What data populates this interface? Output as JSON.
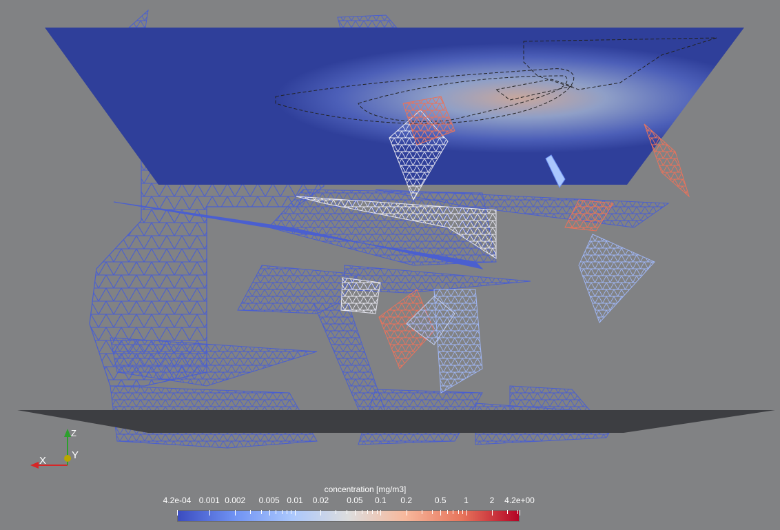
{
  "colorbar": {
    "title": "concentration [mg/m3]",
    "ticks": [
      "4.2e-04",
      "0.001",
      "0.002",
      "0.005",
      "0.01",
      "0.02",
      "0.05",
      "0.1",
      "0.2",
      "0.5",
      "1",
      "2",
      "4.2e+00"
    ],
    "tick_values": [
      0.00042,
      0.001,
      0.002,
      0.005,
      0.01,
      0.02,
      0.05,
      0.1,
      0.2,
      0.5,
      1,
      2,
      4.2
    ],
    "minor_values": [
      0.003,
      0.004,
      0.006,
      0.007,
      0.008,
      0.009,
      0.03,
      0.04,
      0.06,
      0.07,
      0.08,
      0.09,
      0.3,
      0.4,
      0.6,
      0.7,
      0.8,
      0.9,
      3,
      4
    ],
    "range": [
      0.00042,
      4.2
    ],
    "scale": "log",
    "colormap": [
      "#3b4cc0",
      "#6f92f3",
      "#aac7fd",
      "#dddddd",
      "#f7b89c",
      "#e7745b",
      "#b40426"
    ]
  },
  "orientation_axes": {
    "x_label": "X",
    "y_label": "Y",
    "z_label": "Z",
    "x_color": "#d62728",
    "y_color": "#c8b400",
    "z_color": "#2ca02c"
  },
  "colors": {
    "background": "#818284",
    "mesh_blue": "#4a5fd0",
    "top_slice": "#2f3f9a",
    "bottom_slice": "#3d3e42"
  }
}
